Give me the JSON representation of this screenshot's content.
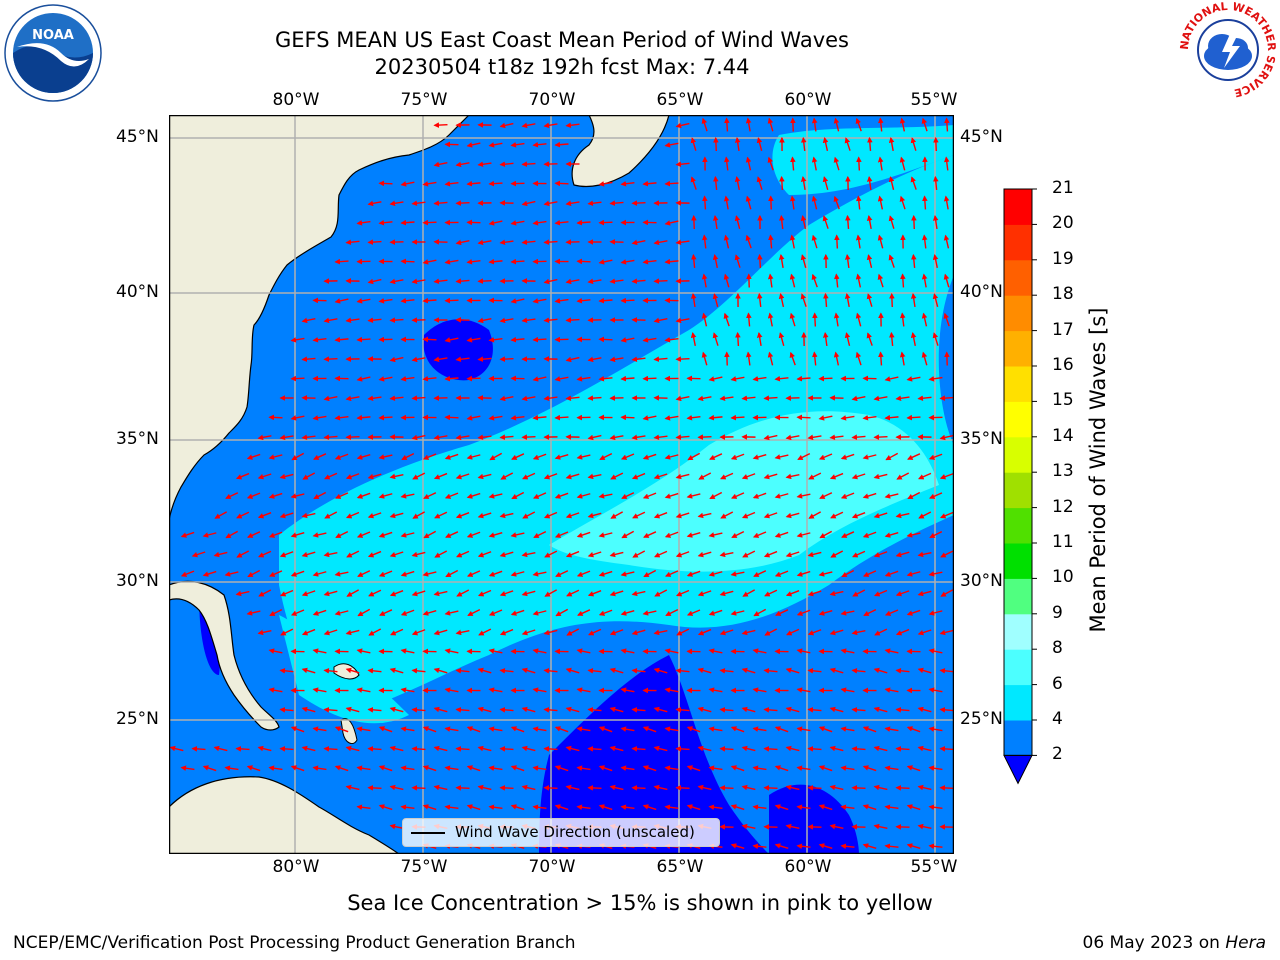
{
  "header": {
    "title": "GEFS MEAN US East Coast Mean Period of Wind Waves",
    "subtitle": "20230504 t18z 192h fcst   Max: 7.44"
  },
  "logos": {
    "left": {
      "text": "NOAA",
      "icon": "noaa-logo-icon"
    },
    "right": {
      "icon": "nws-logo-icon",
      "ring_text": "NATIONAL WEATHER SERVICE"
    }
  },
  "map": {
    "lon_labels": [
      "80°W",
      "75°W",
      "70°W",
      "65°W",
      "60°W",
      "55°W"
    ],
    "lat_labels": [
      "45°N",
      "40°N",
      "35°N",
      "30°N",
      "25°N"
    ],
    "legend_label": "Wind Wave Direction (unscaled)",
    "colors": {
      "land": "#efeedc",
      "arrow": "#ff0000",
      "grid": "#b0b0b0"
    }
  },
  "colorbar": {
    "title": "Mean Period of Wind Waves [s]",
    "ticks": [
      "2",
      "4",
      "6",
      "8",
      "9",
      "10",
      "11",
      "12",
      "13",
      "14",
      "15",
      "16",
      "17",
      "18",
      "19",
      "20",
      "21"
    ],
    "colors": [
      "#0080ff",
      "#00e8ff",
      "#4cffff",
      "#a0ffff",
      "#50ff80",
      "#00e000",
      "#50e000",
      "#a0e000",
      "#d8ff00",
      "#ffff00",
      "#ffe000",
      "#ffb000",
      "#ff8c00",
      "#ff6000",
      "#ff3000",
      "#ff0000"
    ],
    "under_color": "#0000ff"
  },
  "footer": {
    "note": "Sea Ice Concentration > 15% is shown in pink to yellow",
    "credit": "NCEP/EMC/Verification Post Processing Product Generation Branch",
    "date_prefix": "06 May 2023 on ",
    "date_machine": "Hera"
  }
}
